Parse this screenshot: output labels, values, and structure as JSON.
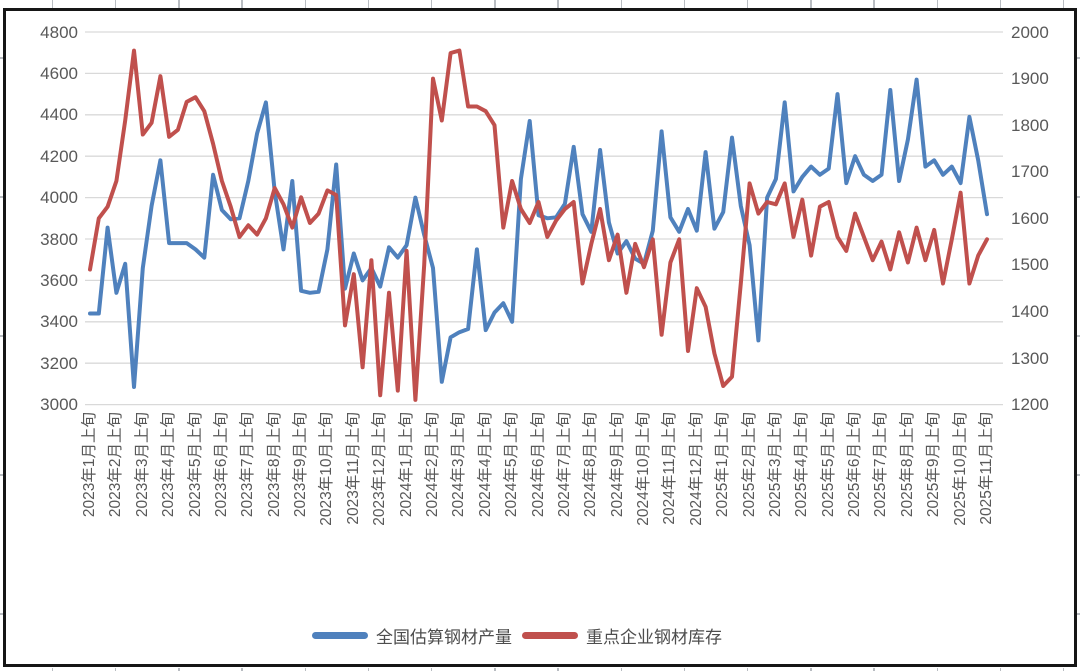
{
  "chart_data": {
    "type": "line",
    "title": "",
    "grid": true,
    "legend_position": "bottom",
    "points_per_x_tick": 3,
    "x_tick_labels": [
      "2023年1月上旬",
      "2023年2月上旬",
      "2023年3月上旬",
      "2023年4月上旬",
      "2023年5月上旬",
      "2023年6月上旬",
      "2023年7月上旬",
      "2023年8月上旬",
      "2023年9月上旬",
      "2023年10月上旬",
      "2023年11月上旬",
      "2023年12月上旬",
      "2024年1月上旬",
      "2024年2月上旬",
      "2024年3月上旬",
      "2024年4月上旬",
      "2024年5月上旬",
      "2024年6月上旬",
      "2024年7月上旬",
      "2024年8月上旬",
      "2024年9月上旬",
      "2024年10月上旬",
      "2024年11月上旬",
      "2024年12月上旬",
      "2025年1月上旬",
      "2025年2月上旬",
      "2025年3月上旬",
      "2025年4月上旬",
      "2025年5月上旬",
      "2025年6月上旬",
      "2025年7月上旬",
      "2025年8月上旬",
      "2025年9月上旬",
      "2025年10月上旬",
      "2025年11月上旬"
    ],
    "left_axis": {
      "min": 3000,
      "max": 4800,
      "step": 200,
      "ticks": [
        "4800",
        "4600",
        "4400",
        "4200",
        "4000",
        "3800",
        "3600",
        "3400",
        "3200",
        "3000"
      ]
    },
    "right_axis": {
      "min": 1200,
      "max": 2000,
      "step": 100,
      "ticks": [
        "2000",
        "1900",
        "1800",
        "1700",
        "1600",
        "1500",
        "1400",
        "1300",
        "1200"
      ]
    },
    "series": [
      {
        "name": "全国估算钢材产量",
        "color": "#4F81BD",
        "axis": "left",
        "values": [
          3440,
          3440,
          3855,
          3540,
          3680,
          3085,
          3660,
          3960,
          4180,
          3780,
          3780,
          3780,
          3750,
          3710,
          4110,
          3940,
          3895,
          3900,
          4080,
          4310,
          4460,
          4030,
          3750,
          4080,
          3550,
          3540,
          3545,
          3750,
          4160,
          3560,
          3730,
          3600,
          3660,
          3570,
          3760,
          3710,
          3770,
          4000,
          3820,
          3660,
          3110,
          3325,
          3350,
          3365,
          3750,
          3360,
          3445,
          3490,
          3400,
          4090,
          4370,
          3915,
          3900,
          3905,
          3970,
          4245,
          3920,
          3835,
          4230,
          3880,
          3730,
          3790,
          3705,
          3680,
          3840,
          4320,
          3905,
          3835,
          3945,
          3840,
          4220,
          3850,
          3930,
          4290,
          3960,
          3770,
          3310,
          4000,
          4090,
          4460,
          4030,
          4100,
          4150,
          4110,
          4140,
          4500,
          4070,
          4200,
          4110,
          4080,
          4110,
          4520,
          4080,
          4280,
          4570,
          4150,
          4180,
          4110,
          4150,
          4070,
          4390,
          4180,
          3920
        ]
      },
      {
        "name": "重点企业钢材库存",
        "color": "#C0504D",
        "axis": "right",
        "values": [
          1490,
          1600,
          1625,
          1680,
          1810,
          1960,
          1780,
          1805,
          1905,
          1775,
          1790,
          1850,
          1860,
          1830,
          1760,
          1680,
          1625,
          1560,
          1585,
          1565,
          1600,
          1665,
          1630,
          1580,
          1645,
          1590,
          1610,
          1660,
          1650,
          1370,
          1480,
          1280,
          1510,
          1220,
          1440,
          1230,
          1530,
          1210,
          1500,
          1900,
          1810,
          1955,
          1960,
          1840,
          1840,
          1830,
          1800,
          1580,
          1680,
          1620,
          1590,
          1635,
          1560,
          1595,
          1620,
          1635,
          1460,
          1545,
          1620,
          1510,
          1565,
          1440,
          1545,
          1495,
          1555,
          1350,
          1505,
          1555,
          1315,
          1450,
          1410,
          1310,
          1240,
          1260,
          1460,
          1675,
          1610,
          1635,
          1630,
          1675,
          1560,
          1640,
          1520,
          1625,
          1635,
          1560,
          1530,
          1610,
          1560,
          1510,
          1550,
          1490,
          1570,
          1505,
          1580,
          1510,
          1575,
          1460,
          1555,
          1655,
          1460,
          1520,
          1555
        ]
      }
    ]
  },
  "legend": {
    "items": [
      {
        "label": "全国估算钢材产量",
        "color": "#4F81BD"
      },
      {
        "label": "重点企业钢材库存",
        "color": "#C0504D"
      }
    ]
  },
  "colors": {
    "gridline": "#d9d9d9",
    "axis_text": "#595959",
    "frame_border": "#161616",
    "series_blue": "#4F81BD",
    "series_red": "#C0504D"
  }
}
